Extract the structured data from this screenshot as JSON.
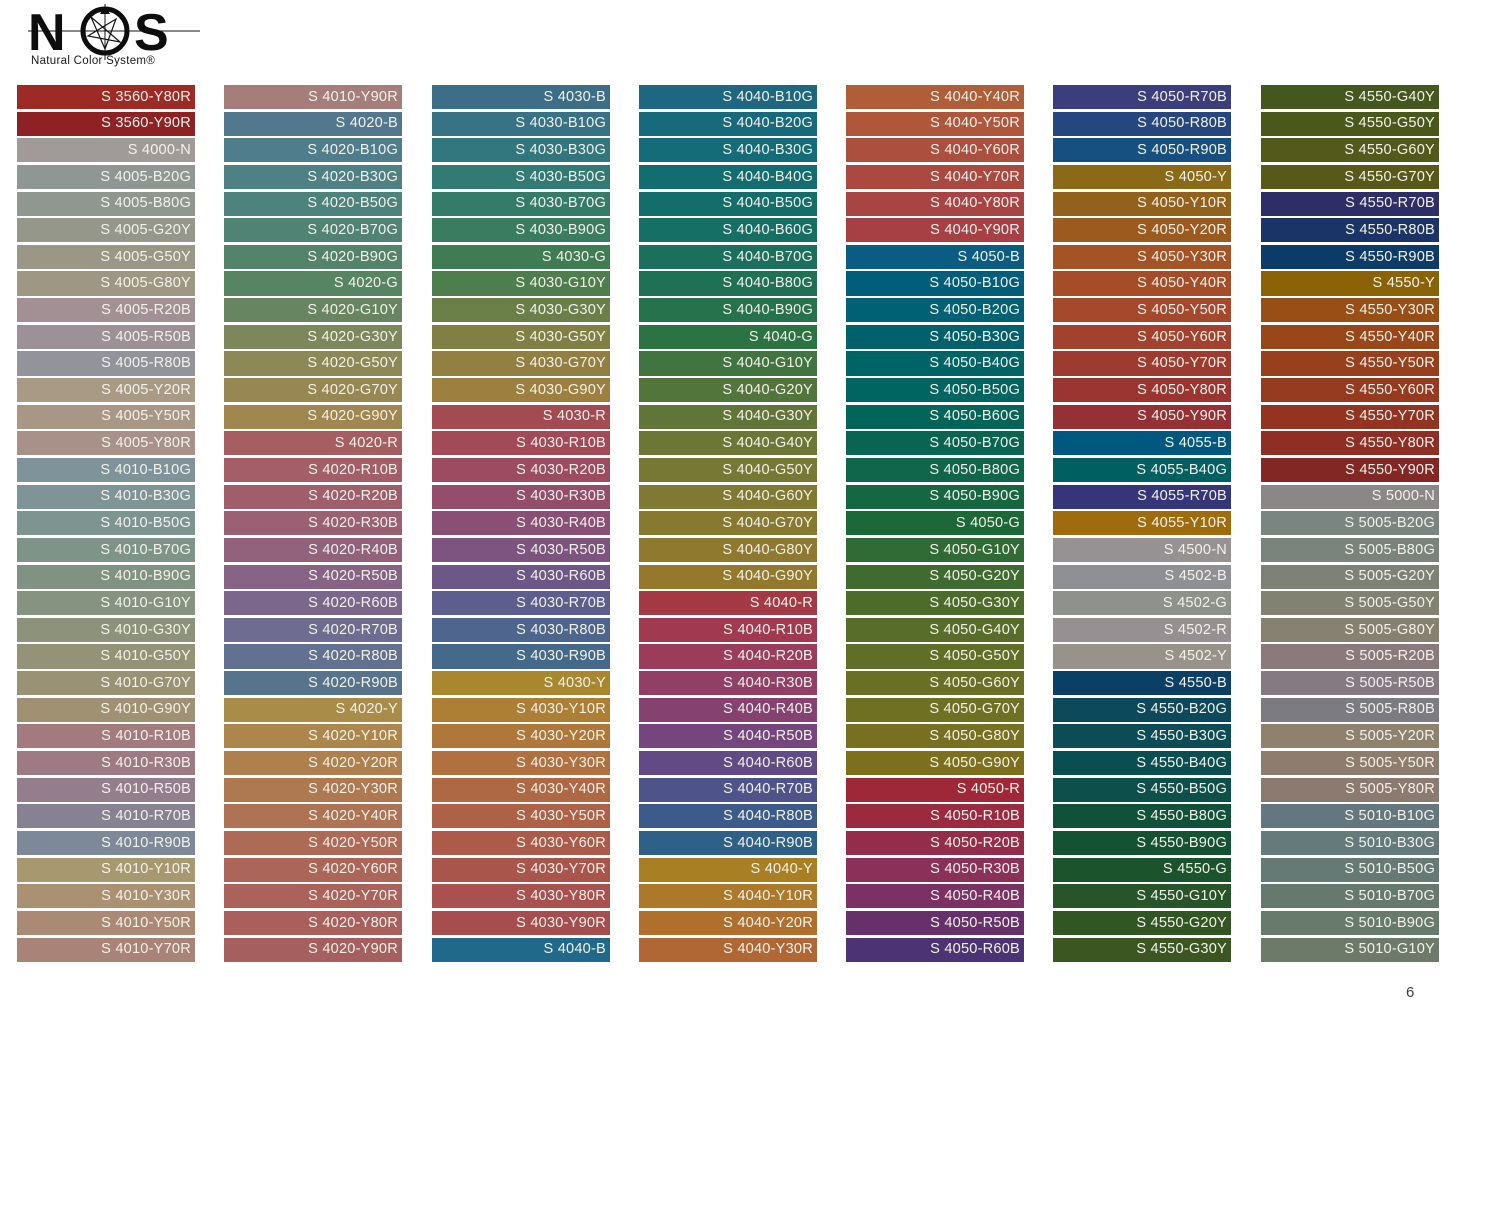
{
  "logo": {
    "letter_n": "N",
    "letter_s": "S",
    "tagline": "Natural Color System®"
  },
  "page_number": "6",
  "chart_data": {
    "type": "table",
    "title": "NCS color swatch chart",
    "layout_hint": "7 columns x 33 rows of labeled color bars, labels right-aligned in white",
    "columns": [
      [
        {
          "code": "S 3560-Y80R",
          "hex": "#9e2a25"
        },
        {
          "code": "S 3560-Y90R",
          "hex": "#8e2123"
        },
        {
          "code": "S 4000-N",
          "hex": "#a09b98"
        },
        {
          "code": "S 4005-B20G",
          "hex": "#8f9795"
        },
        {
          "code": "S 4005-B80G",
          "hex": "#909790"
        },
        {
          "code": "S 4005-G20Y",
          "hex": "#95978b"
        },
        {
          "code": "S 4005-G50Y",
          "hex": "#9a9787"
        },
        {
          "code": "S 4005-G80Y",
          "hex": "#9e9784"
        },
        {
          "code": "S 4005-R20B",
          "hex": "#a29094"
        },
        {
          "code": "S 4005-R50B",
          "hex": "#9c9197"
        },
        {
          "code": "S 4005-R80B",
          "hex": "#92939b"
        },
        {
          "code": "S 4005-Y20R",
          "hex": "#a99a85"
        },
        {
          "code": "S 4005-Y50R",
          "hex": "#a99786"
        },
        {
          "code": "S 4005-Y80R",
          "hex": "#a79189"
        },
        {
          "code": "S 4010-B10G",
          "hex": "#7f939b"
        },
        {
          "code": "S 4010-B30G",
          "hex": "#7e9497"
        },
        {
          "code": "S 4010-B50G",
          "hex": "#7e9490"
        },
        {
          "code": "S 4010-B70G",
          "hex": "#7e9489"
        },
        {
          "code": "S 4010-B90G",
          "hex": "#809382"
        },
        {
          "code": "S 4010-G10Y",
          "hex": "#859380"
        },
        {
          "code": "S 4010-G30Y",
          "hex": "#8d937b"
        },
        {
          "code": "S 4010-G50Y",
          "hex": "#949377"
        },
        {
          "code": "S 4010-G70Y",
          "hex": "#9a9274"
        },
        {
          "code": "S 4010-G90Y",
          "hex": "#9f9171"
        },
        {
          "code": "S 4010-R10B",
          "hex": "#a37b7e"
        },
        {
          "code": "S 4010-R30B",
          "hex": "#9e7b84"
        },
        {
          "code": "S 4010-R50B",
          "hex": "#947d8c"
        },
        {
          "code": "S 4010-R70B",
          "hex": "#878292"
        },
        {
          "code": "S 4010-R90B",
          "hex": "#7d8898"
        },
        {
          "code": "S 4010-Y10R",
          "hex": "#a8986f"
        },
        {
          "code": "S 4010-Y30R",
          "hex": "#aa9172"
        },
        {
          "code": "S 4010-Y50R",
          "hex": "#ab8a75"
        },
        {
          "code": "S 4010-Y70R",
          "hex": "#a98378"
        }
      ],
      [
        {
          "code": "S 4010-Y90R",
          "hex": "#a57e7b"
        },
        {
          "code": "S 4020-B",
          "hex": "#53788d"
        },
        {
          "code": "S 4020-B10G",
          "hex": "#4f7d8b"
        },
        {
          "code": "S 4020-B30G",
          "hex": "#4d8184"
        },
        {
          "code": "S 4020-B50G",
          "hex": "#4e827c"
        },
        {
          "code": "S 4020-B70G",
          "hex": "#508374"
        },
        {
          "code": "S 4020-B90G",
          "hex": "#54836b"
        },
        {
          "code": "S 4020-G",
          "hex": "#578463"
        },
        {
          "code": "S 4020-G10Y",
          "hex": "#688561"
        },
        {
          "code": "S 4020-G30Y",
          "hex": "#7c875c"
        },
        {
          "code": "S 4020-G50Y",
          "hex": "#8c8857"
        },
        {
          "code": "S 4020-G70Y",
          "hex": "#978753"
        },
        {
          "code": "S 4020-G90Y",
          "hex": "#a08750"
        },
        {
          "code": "S 4020-R",
          "hex": "#a55f63"
        },
        {
          "code": "S 4020-R10B",
          "hex": "#a35e67"
        },
        {
          "code": "S 4020-R20B",
          "hex": "#a05e6d"
        },
        {
          "code": "S 4020-R30B",
          "hex": "#9a6074"
        },
        {
          "code": "S 4020-R40B",
          "hex": "#92627d"
        },
        {
          "code": "S 4020-R50B",
          "hex": "#876485"
        },
        {
          "code": "S 4020-R60B",
          "hex": "#7b678c"
        },
        {
          "code": "S 4020-R70B",
          "hex": "#6e6c90"
        },
        {
          "code": "S 4020-R80B",
          "hex": "#627190"
        },
        {
          "code": "S 4020-R90B",
          "hex": "#58748d"
        },
        {
          "code": "S 4020-Y",
          "hex": "#a98c48"
        },
        {
          "code": "S 4020-Y10R",
          "hex": "#ac864b"
        },
        {
          "code": "S 4020-Y20R",
          "hex": "#ae804e"
        },
        {
          "code": "S 4020-Y30R",
          "hex": "#ae7951"
        },
        {
          "code": "S 4020-Y40R",
          "hex": "#ae7254"
        },
        {
          "code": "S 4020-Y50R",
          "hex": "#ad6b57"
        },
        {
          "code": "S 4020-Y60R",
          "hex": "#ac6659"
        },
        {
          "code": "S 4020-Y70R",
          "hex": "#ab625b"
        },
        {
          "code": "S 4020-Y80R",
          "hex": "#a9605d"
        },
        {
          "code": "S 4020-Y90R",
          "hex": "#a65f5f"
        }
      ],
      [
        {
          "code": "S 4030-B",
          "hex": "#3d6e88"
        },
        {
          "code": "S 4030-B10G",
          "hex": "#377285"
        },
        {
          "code": "S 4030-B30G",
          "hex": "#32767e"
        },
        {
          "code": "S 4030-B50G",
          "hex": "#327a74"
        },
        {
          "code": "S 4030-B70G",
          "hex": "#357b6a"
        },
        {
          "code": "S 4030-B90G",
          "hex": "#3a7c5f"
        },
        {
          "code": "S 4030-G",
          "hex": "#3e7d54"
        },
        {
          "code": "S 4030-G10Y",
          "hex": "#4f7e4e"
        },
        {
          "code": "S 4030-G30Y",
          "hex": "#6b7f48"
        },
        {
          "code": "S 4030-G50Y",
          "hex": "#818044"
        },
        {
          "code": "S 4030-G70Y",
          "hex": "#918042"
        },
        {
          "code": "S 4030-G90Y",
          "hex": "#9d7f3f"
        },
        {
          "code": "S 4030-R",
          "hex": "#a44a51"
        },
        {
          "code": "S 4030-R10B",
          "hex": "#a24a58"
        },
        {
          "code": "S 4030-R20B",
          "hex": "#9c4b60"
        },
        {
          "code": "S 4030-R30B",
          "hex": "#944d6a"
        },
        {
          "code": "S 4030-R40B",
          "hex": "#894f74"
        },
        {
          "code": "S 4030-R50B",
          "hex": "#7d537f"
        },
        {
          "code": "S 4030-R60B",
          "hex": "#6d5788"
        },
        {
          "code": "S 4030-R70B",
          "hex": "#5d5e8e"
        },
        {
          "code": "S 4030-R80B",
          "hex": "#4e658e"
        },
        {
          "code": "S 4030-R90B",
          "hex": "#45698a"
        },
        {
          "code": "S 4030-Y",
          "hex": "#a9872f"
        },
        {
          "code": "S 4030-Y10R",
          "hex": "#ad7f35"
        },
        {
          "code": "S 4030-Y20R",
          "hex": "#af783a"
        },
        {
          "code": "S 4030-Y30R",
          "hex": "#b07040"
        },
        {
          "code": "S 4030-Y40R",
          "hex": "#af6844"
        },
        {
          "code": "S 4030-Y50R",
          "hex": "#ae6147"
        },
        {
          "code": "S 4030-Y60R",
          "hex": "#ac5a4a"
        },
        {
          "code": "S 4030-Y70R",
          "hex": "#aa554c"
        },
        {
          "code": "S 4030-Y80R",
          "hex": "#a8514e"
        },
        {
          "code": "S 4030-Y90R",
          "hex": "#a64e4f"
        },
        {
          "code": "S 4040-B",
          "hex": "#21698b"
        }
      ],
      [
        {
          "code": "S 4040-B10G",
          "hex": "#1d6780"
        },
        {
          "code": "S 4040-B20G",
          "hex": "#176a7c"
        },
        {
          "code": "S 4040-B30G",
          "hex": "#136c77"
        },
        {
          "code": "S 4040-B40G",
          "hex": "#126d71"
        },
        {
          "code": "S 4040-B50G",
          "hex": "#136e6b"
        },
        {
          "code": "S 4040-B60G",
          "hex": "#166f64"
        },
        {
          "code": "S 4040-B70G",
          "hex": "#1a705d"
        },
        {
          "code": "S 4040-B80G",
          "hex": "#1f7155"
        },
        {
          "code": "S 4040-B90G",
          "hex": "#25724d"
        },
        {
          "code": "S 4040-G",
          "hex": "#2c7344"
        },
        {
          "code": "S 4040-G10Y",
          "hex": "#417440"
        },
        {
          "code": "S 4040-G20Y",
          "hex": "#52753c"
        },
        {
          "code": "S 4040-G30Y",
          "hex": "#607639"
        },
        {
          "code": "S 4040-G40Y",
          "hex": "#6c7736"
        },
        {
          "code": "S 4040-G50Y",
          "hex": "#767834"
        },
        {
          "code": "S 4040-G60Y",
          "hex": "#7f7932"
        },
        {
          "code": "S 4040-G70Y",
          "hex": "#877930"
        },
        {
          "code": "S 4040-G80Y",
          "hex": "#8e792e"
        },
        {
          "code": "S 4040-G90Y",
          "hex": "#94792c"
        },
        {
          "code": "S 4040-R",
          "hex": "#a43946"
        },
        {
          "code": "S 4040-R10B",
          "hex": "#a13a50"
        },
        {
          "code": "S 4040-R20B",
          "hex": "#9b3c5a"
        },
        {
          "code": "S 4040-R30B",
          "hex": "#923f66"
        },
        {
          "code": "S 4040-R40B",
          "hex": "#854271"
        },
        {
          "code": "S 4040-R50B",
          "hex": "#75467d"
        },
        {
          "code": "S 4040-R60B",
          "hex": "#624b85"
        },
        {
          "code": "S 4040-R70B",
          "hex": "#4e538a"
        },
        {
          "code": "S 4040-R80B",
          "hex": "#3c5b8a"
        },
        {
          "code": "S 4040-R90B",
          "hex": "#2f6188"
        },
        {
          "code": "S 4040-Y",
          "hex": "#a88023"
        },
        {
          "code": "S 4040-Y10R",
          "hex": "#ac7829"
        },
        {
          "code": "S 4040-Y20R",
          "hex": "#af702e"
        },
        {
          "code": "S 4040-Y30R",
          "hex": "#b06734"
        }
      ],
      [
        {
          "code": "S 4040-Y40R",
          "hex": "#b05e38"
        },
        {
          "code": "S 4040-Y50R",
          "hex": "#af563b"
        },
        {
          "code": "S 4040-Y60R",
          "hex": "#ad4f3e"
        },
        {
          "code": "S 4040-Y70R",
          "hex": "#ab4941"
        },
        {
          "code": "S 4040-Y80R",
          "hex": "#a84443"
        },
        {
          "code": "S 4040-Y90R",
          "hex": "#a64044"
        },
        {
          "code": "S 4050-B",
          "hex": "#0b5c83"
        },
        {
          "code": "S 4050-B10G",
          "hex": "#005e7b"
        },
        {
          "code": "S 4050-B20G",
          "hex": "#006074"
        },
        {
          "code": "S 4050-B30G",
          "hex": "#00616d"
        },
        {
          "code": "S 4050-B40G",
          "hex": "#006366"
        },
        {
          "code": "S 4050-B50G",
          "hex": "#006460"
        },
        {
          "code": "S 4050-B60G",
          "hex": "#036559"
        },
        {
          "code": "S 4050-B70G",
          "hex": "#096551"
        },
        {
          "code": "S 4050-B80G",
          "hex": "#0f664a"
        },
        {
          "code": "S 4050-B90G",
          "hex": "#156742"
        },
        {
          "code": "S 4050-G",
          "hex": "#1c6839"
        },
        {
          "code": "S 4050-G10Y",
          "hex": "#306a34"
        },
        {
          "code": "S 4050-G20Y",
          "hex": "#406b30"
        },
        {
          "code": "S 4050-G30Y",
          "hex": "#4d6c2c"
        },
        {
          "code": "S 4050-G40Y",
          "hex": "#586d29"
        },
        {
          "code": "S 4050-G50Y",
          "hex": "#616e26"
        },
        {
          "code": "S 4050-G60Y",
          "hex": "#696f24"
        },
        {
          "code": "S 4050-G70Y",
          "hex": "#707022"
        },
        {
          "code": "S 4050-G80Y",
          "hex": "#767020"
        },
        {
          "code": "S 4050-G90Y",
          "hex": "#7c701e"
        },
        {
          "code": "S 4050-R",
          "hex": "#9e2837"
        },
        {
          "code": "S 4050-R10B",
          "hex": "#9b2a41"
        },
        {
          "code": "S 4050-R20B",
          "hex": "#942c4c"
        },
        {
          "code": "S 4050-R30B",
          "hex": "#8a3059"
        },
        {
          "code": "S 4050-R40B",
          "hex": "#7c3164"
        },
        {
          "code": "S 4050-R50B",
          "hex": "#66306b"
        },
        {
          "code": "S 4050-R60B",
          "hex": "#4b3374"
        }
      ],
      [
        {
          "code": "S 4050-R70B",
          "hex": "#3b3d7c"
        },
        {
          "code": "S 4050-R80B",
          "hex": "#26467f"
        },
        {
          "code": "S 4050-R90B",
          "hex": "#155080"
        },
        {
          "code": "S 4050-Y",
          "hex": "#8a6a16"
        },
        {
          "code": "S 4050-Y10R",
          "hex": "#92621c"
        },
        {
          "code": "S 4050-Y20R",
          "hex": "#9d5a1f"
        },
        {
          "code": "S 4050-Y30R",
          "hex": "#a35324"
        },
        {
          "code": "S 4050-Y40R",
          "hex": "#a44d28"
        },
        {
          "code": "S 4050-Y50R",
          "hex": "#a6482c"
        },
        {
          "code": "S 4050-Y60R",
          "hex": "#a2422e"
        },
        {
          "code": "S 4050-Y70R",
          "hex": "#9e3b30"
        },
        {
          "code": "S 4050-Y80R",
          "hex": "#9a3532"
        },
        {
          "code": "S 4050-Y90R",
          "hex": "#953034"
        },
        {
          "code": "S 4055-B",
          "hex": "#00587f"
        },
        {
          "code": "S 4055-B40G",
          "hex": "#005f61"
        },
        {
          "code": "S 4055-R70B",
          "hex": "#343679"
        },
        {
          "code": "S 4055-Y10R",
          "hex": "#9e6b0d"
        },
        {
          "code": "S 4500-N",
          "hex": "#969192"
        },
        {
          "code": "S 4502-B",
          "hex": "#8e9094"
        },
        {
          "code": "S 4502-G",
          "hex": "#8e918c"
        },
        {
          "code": "S 4502-R",
          "hex": "#979093"
        },
        {
          "code": "S 4502-Y",
          "hex": "#97928a"
        },
        {
          "code": "S 4550-B",
          "hex": "#0c3f66"
        },
        {
          "code": "S 4550-B20G",
          "hex": "#0c4a5b"
        },
        {
          "code": "S 4550-B30G",
          "hex": "#0b4c56"
        },
        {
          "code": "S 4550-B40G",
          "hex": "#0b4e51"
        },
        {
          "code": "S 4550-B50G",
          "hex": "#0c4f4b"
        },
        {
          "code": "S 4550-B80G",
          "hex": "#10513a"
        },
        {
          "code": "S 4550-B90G",
          "hex": "#145233"
        },
        {
          "code": "S 4550-G",
          "hex": "#1b532c"
        },
        {
          "code": "S 4550-G10Y",
          "hex": "#275428"
        },
        {
          "code": "S 4550-G20Y",
          "hex": "#325524"
        },
        {
          "code": "S 4550-G30Y",
          "hex": "#3b5621"
        }
      ],
      [
        {
          "code": "S 4550-G40Y",
          "hex": "#43571e"
        },
        {
          "code": "S 4550-G50Y",
          "hex": "#4b581c"
        },
        {
          "code": "S 4550-G60Y",
          "hex": "#52591a"
        },
        {
          "code": "S 4550-G70Y",
          "hex": "#585918"
        },
        {
          "code": "S 4550-R70B",
          "hex": "#2f2d66"
        },
        {
          "code": "S 4550-R80B",
          "hex": "#1b3468"
        },
        {
          "code": "S 4550-R90B",
          "hex": "#0d3b69"
        },
        {
          "code": "S 4550-Y",
          "hex": "#8a6307"
        },
        {
          "code": "S 4550-Y30R",
          "hex": "#994e15"
        },
        {
          "code": "S 4550-Y40R",
          "hex": "#994719"
        },
        {
          "code": "S 4550-Y50R",
          "hex": "#98401d"
        },
        {
          "code": "S 4550-Y60R",
          "hex": "#963a20"
        },
        {
          "code": "S 4550-Y70R",
          "hex": "#933322"
        },
        {
          "code": "S 4550-Y80R",
          "hex": "#8f2e24"
        },
        {
          "code": "S 4550-Y90R",
          "hex": "#822723"
        },
        {
          "code": "S 5000-N",
          "hex": "#8b8786"
        },
        {
          "code": "S 5005-B20G",
          "hex": "#7a8481"
        },
        {
          "code": "S 5005-B80G",
          "hex": "#7a837c"
        },
        {
          "code": "S 5005-G20Y",
          "hex": "#7e8276"
        },
        {
          "code": "S 5005-G50Y",
          "hex": "#828272"
        },
        {
          "code": "S 5005-G80Y",
          "hex": "#868170"
        },
        {
          "code": "S 5005-R20B",
          "hex": "#8a7a7c"
        },
        {
          "code": "S 5005-R50B",
          "hex": "#857a81"
        },
        {
          "code": "S 5005-R80B",
          "hex": "#7c7b82"
        },
        {
          "code": "S 5005-Y20R",
          "hex": "#8e826f"
        },
        {
          "code": "S 5005-Y50R",
          "hex": "#8e7d6e"
        },
        {
          "code": "S 5005-Y80R",
          "hex": "#8c7970"
        },
        {
          "code": "S 5010-B10G",
          "hex": "#65777e"
        },
        {
          "code": "S 5010-B30G",
          "hex": "#647a7b"
        },
        {
          "code": "S 5010-B50G",
          "hex": "#657a75"
        },
        {
          "code": "S 5010-B70G",
          "hex": "#66796e"
        },
        {
          "code": "S 5010-B90G",
          "hex": "#687a6b"
        },
        {
          "code": "S 5010-G10Y",
          "hex": "#6d7a69"
        }
      ]
    ]
  }
}
